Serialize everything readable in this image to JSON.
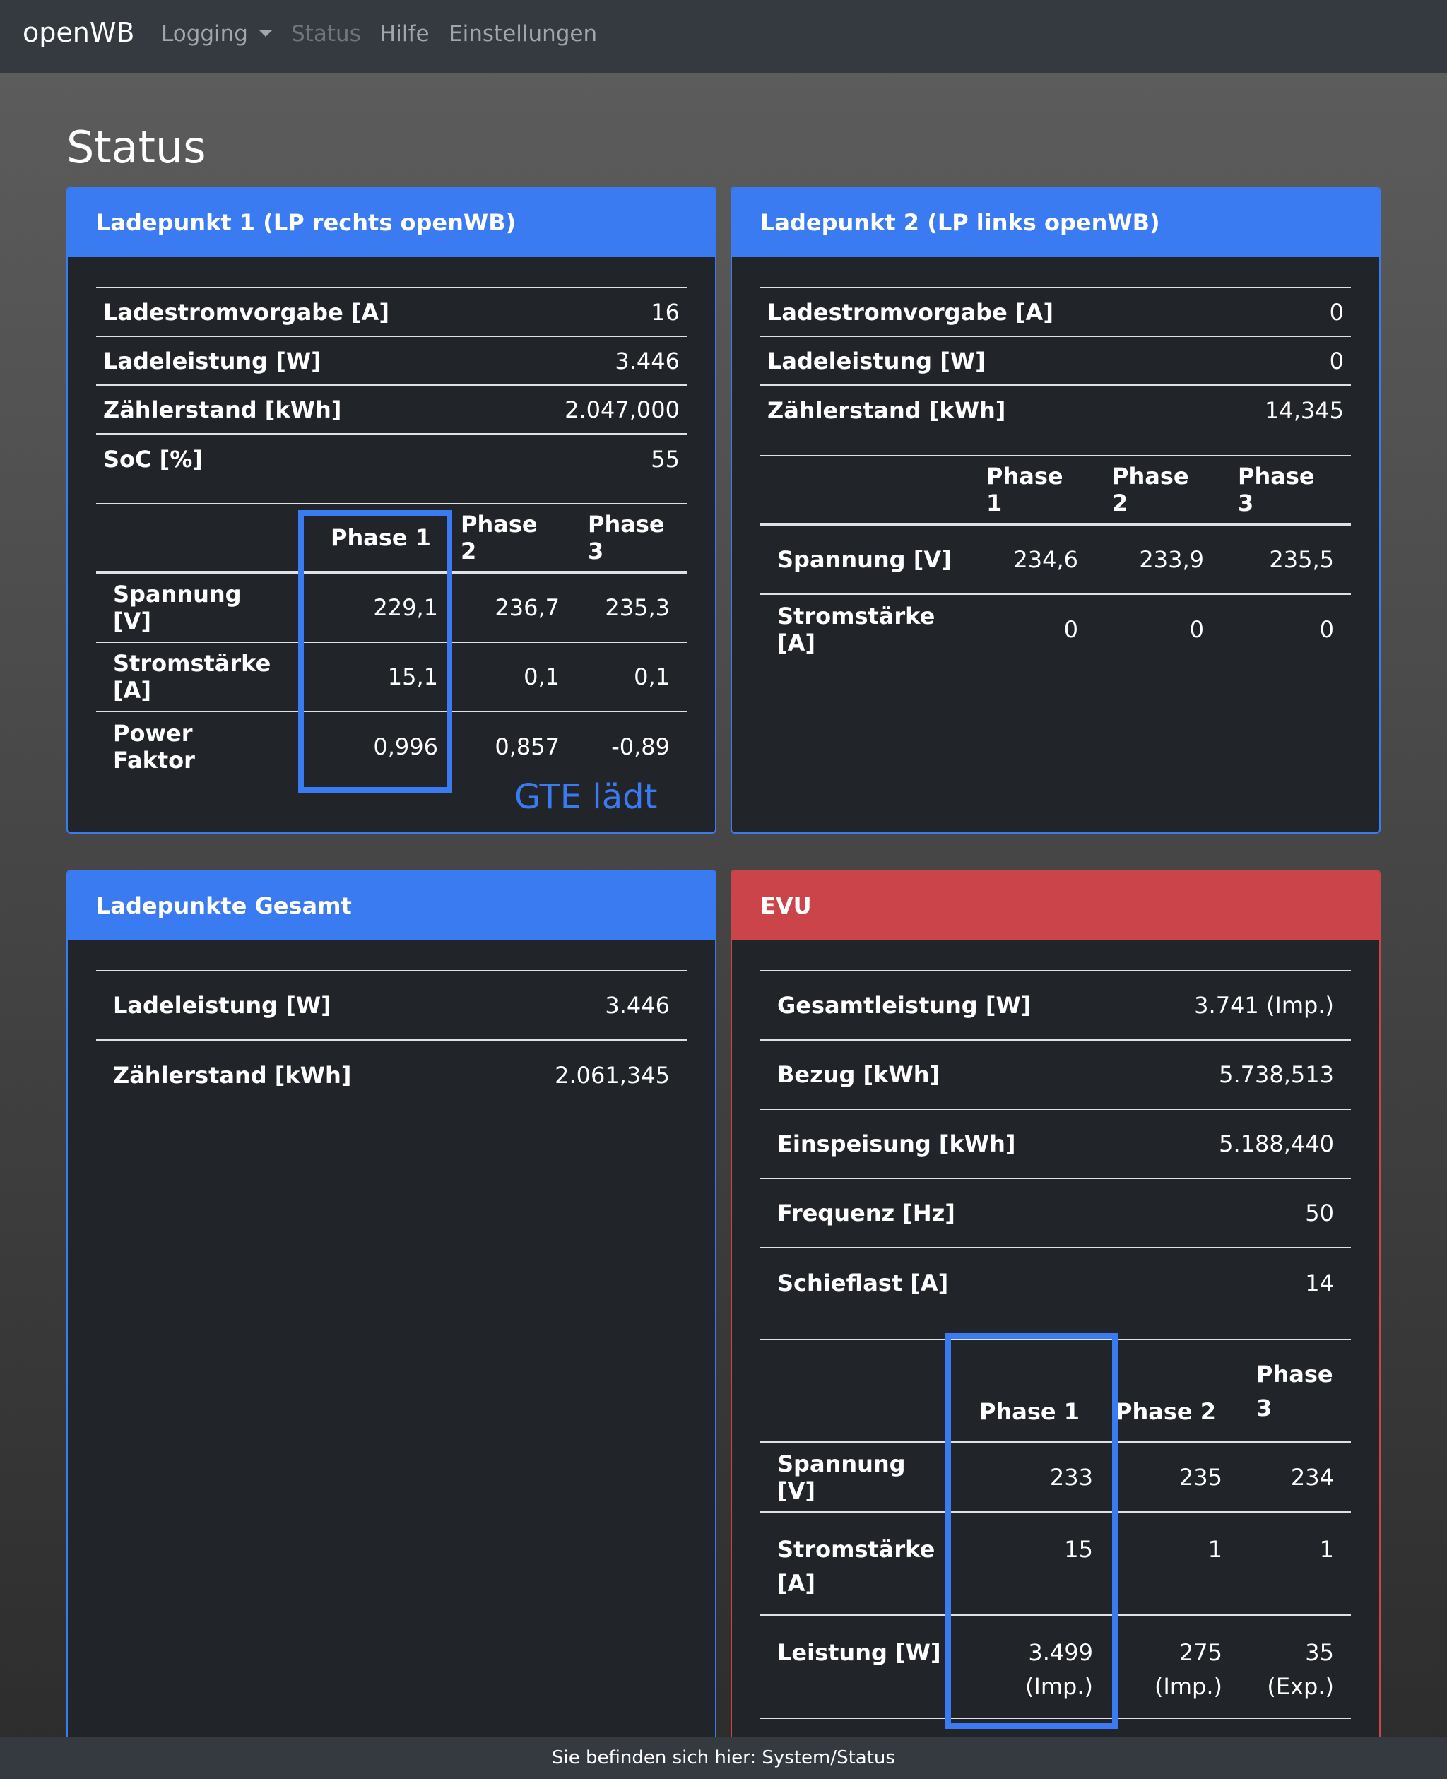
{
  "navbar": {
    "brand": "openWB",
    "items": [
      {
        "label": "Logging"
      },
      {
        "label": "Status"
      },
      {
        "label": "Hilfe"
      },
      {
        "label": "Einstellungen"
      }
    ]
  },
  "page_title": "Status",
  "lp1": {
    "title": "Ladepunkt 1 (LP rechts openWB)",
    "rows": [
      {
        "label": "Ladestromvorgabe [A]",
        "value": "16"
      },
      {
        "label": "Ladeleistung [W]",
        "value": "3.446"
      },
      {
        "label": "Zählerstand [kWh]",
        "value": "2.047,000"
      },
      {
        "label": "SoC [%]",
        "value": "55"
      }
    ],
    "phase_headers": [
      "Phase 1",
      "Phase 2",
      "Phase 3"
    ],
    "phase_rows": [
      {
        "label": "Spannung [V]",
        "values": [
          "229,1",
          "236,7",
          "235,3"
        ]
      },
      {
        "label": "Stromstärke [A]",
        "values": [
          "15,1",
          "0,1",
          "0,1"
        ]
      },
      {
        "label": "Power Faktor",
        "values": [
          "0,996",
          "0,857",
          "-0,89"
        ]
      }
    ],
    "annotation": "GTE lädt"
  },
  "lp2": {
    "title": "Ladepunkt 2 (LP links openWB)",
    "rows": [
      {
        "label": "Ladestromvorgabe [A]",
        "value": "0"
      },
      {
        "label": "Ladeleistung [W]",
        "value": "0"
      },
      {
        "label": "Zählerstand [kWh]",
        "value": "14,345"
      }
    ],
    "phase_headers": [
      "Phase 1",
      "Phase 2",
      "Phase 3"
    ],
    "phase_rows": [
      {
        "label": "Spannung [V]",
        "values": [
          "234,6",
          "233,9",
          "235,5"
        ]
      },
      {
        "label": "Stromstärke [A]",
        "values": [
          "0",
          "0",
          "0"
        ]
      }
    ]
  },
  "total": {
    "title": "Ladepunkte Gesamt",
    "rows": [
      {
        "label": "Ladeleistung [W]",
        "value": "3.446"
      },
      {
        "label": "Zählerstand [kWh]",
        "value": "2.061,345"
      }
    ]
  },
  "evu": {
    "title": "EVU",
    "rows": [
      {
        "label": "Gesamtleistung [W]",
        "value": "3.741 (Imp.)"
      },
      {
        "label": "Bezug [kWh]",
        "value": "5.738,513"
      },
      {
        "label": "Einspeisung [kWh]",
        "value": "5.188,440"
      },
      {
        "label": "Frequenz [Hz]",
        "value": "50"
      },
      {
        "label": "Schieflast [A]",
        "value": "14"
      }
    ],
    "phase_headers": [
      "Phase 1",
      "Phase 2",
      "Phase",
      "3"
    ],
    "phase_rows": [
      {
        "label": "Spannung [V]",
        "values": [
          "233",
          "235",
          "234"
        ]
      },
      {
        "label": "Stromstärke",
        "label2": "[A]",
        "values": [
          "15",
          "1",
          "1"
        ]
      },
      {
        "label": "Leistung [W]",
        "values": [
          "3.499",
          "275",
          "35"
        ],
        "values2": [
          "(Imp.)",
          "(Imp.)",
          "(Exp.)"
        ]
      }
    ]
  },
  "footer": "Sie befinden sich hier: System/Status",
  "colors": {
    "primary": "#3b7bf1",
    "danger": "#cb444a",
    "card_bg": "#212429",
    "navbar": "#343a40"
  }
}
